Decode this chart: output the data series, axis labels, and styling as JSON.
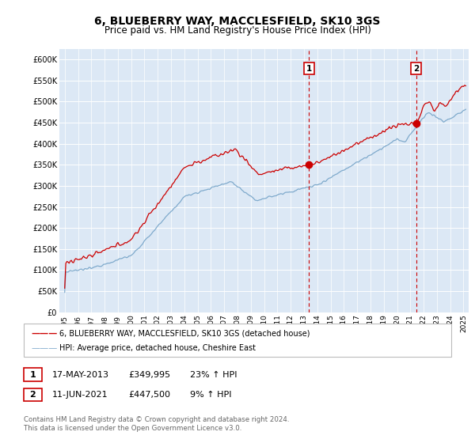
{
  "title": "6, BLUEBERRY WAY, MACCLESFIELD, SK10 3GS",
  "subtitle": "Price paid vs. HM Land Registry's House Price Index (HPI)",
  "title_fontsize": 10,
  "subtitle_fontsize": 8.5,
  "ylabel_ticks": [
    "£0",
    "£50K",
    "£100K",
    "£150K",
    "£200K",
    "£250K",
    "£300K",
    "£350K",
    "£400K",
    "£450K",
    "£500K",
    "£550K",
    "£600K"
  ],
  "ytick_values": [
    0,
    50000,
    100000,
    150000,
    200000,
    250000,
    300000,
    350000,
    400000,
    450000,
    500000,
    550000,
    600000
  ],
  "ylim": [
    0,
    625000
  ],
  "plot_bg": "#dce8f5",
  "red_color": "#cc0000",
  "blue_color": "#7faacc",
  "legend_label_red": "6, BLUEBERRY WAY, MACCLESFIELD, SK10 3GS (detached house)",
  "legend_label_blue": "HPI: Average price, detached house, Cheshire East",
  "sale1_date": "17-MAY-2013",
  "sale1_price": "£349,995",
  "sale1_hpi": "23% ↑ HPI",
  "sale2_date": "11-JUN-2021",
  "sale2_price": "£447,500",
  "sale2_hpi": "9% ↑ HPI",
  "footer": "Contains HM Land Registry data © Crown copyright and database right 2024.\nThis data is licensed under the Open Government Licence v3.0.",
  "sale1_year": 2013.38,
  "sale1_value": 349995,
  "sale2_year": 2021.44,
  "sale2_value": 447500
}
